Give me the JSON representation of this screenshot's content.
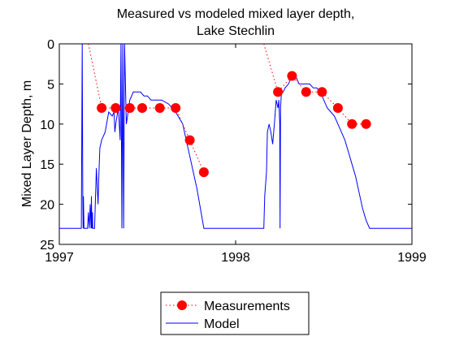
{
  "chart_data": {
    "type": "line",
    "title": [
      "Measured vs modeled mixed layer depth,",
      "Lake Stechlin"
    ],
    "xlabel": "",
    "ylabel": "Mixed Layer Depth, m",
    "xlim": [
      1997,
      1999
    ],
    "ylim": [
      0,
      25
    ],
    "y_reversed": true,
    "grid": false,
    "legend_placement": "bottom-center",
    "xticks": [
      1997,
      1998,
      1999
    ],
    "xtick_labels": [
      "1997",
      "1998",
      "1999"
    ],
    "yticks": [
      0,
      5,
      10,
      15,
      20,
      25
    ],
    "ytick_labels": [
      "0",
      "5",
      "10",
      "15",
      "20",
      "25"
    ],
    "series": [
      {
        "name": "Measurements",
        "style": "dotted-line-with-markers",
        "color": "#ff0000",
        "x": [
          1997.165,
          1997.24,
          1997.32,
          1997.4,
          1997.47,
          1997.57,
          1997.66,
          1997.74,
          1997.82,
          1998.16,
          1998.24,
          1998.32,
          1998.4,
          1998.49,
          1998.58,
          1998.66,
          1998.74
        ],
        "y": [
          0,
          8,
          8,
          8,
          8,
          8,
          8,
          12,
          16,
          0,
          6,
          4,
          6,
          6,
          8,
          10,
          10
        ],
        "marker": [
          false,
          true,
          true,
          true,
          true,
          true,
          true,
          true,
          true,
          false,
          true,
          true,
          true,
          true,
          true,
          true,
          true
        ]
      },
      {
        "name": "Model",
        "style": "solid-line",
        "color": "#0000ff",
        "x": [
          1997.0,
          1997.125,
          1997.13,
          1997.133,
          1997.135,
          1997.137,
          1997.14,
          1997.16,
          1997.165,
          1997.17,
          1997.175,
          1997.18,
          1997.182,
          1997.185,
          1997.188,
          1997.19,
          1997.2,
          1997.21,
          1997.22,
          1997.225,
          1997.23,
          1997.24,
          1997.26,
          1997.28,
          1997.3,
          1997.31,
          1997.315,
          1997.32,
          1997.335,
          1997.345,
          1997.35,
          1997.355,
          1997.36,
          1997.365,
          1997.37,
          1997.38,
          1997.4,
          1997.42,
          1997.44,
          1997.46,
          1997.48,
          1997.5,
          1997.52,
          1997.54,
          1997.58,
          1997.62,
          1997.66,
          1997.7,
          1997.72,
          1997.74,
          1997.76,
          1997.78,
          1997.8,
          1997.82,
          1997.84,
          1997.845,
          1998.16,
          1998.165,
          1998.175,
          1998.18,
          1998.19,
          1998.2,
          1998.21,
          1998.22,
          1998.23,
          1998.24,
          1998.245,
          1998.25,
          1998.252,
          1998.255,
          1998.26,
          1998.27,
          1998.28,
          1998.3,
          1998.32,
          1998.34,
          1998.36,
          1998.38,
          1998.4,
          1998.42,
          1998.44,
          1998.46,
          1998.48,
          1998.5,
          1998.52,
          1998.54,
          1998.56,
          1998.58,
          1998.6,
          1998.62,
          1998.64,
          1998.66,
          1998.68,
          1998.7,
          1998.72,
          1998.74,
          1998.76,
          1998.78,
          1998.8,
          1998.82,
          1998.84,
          1999.0
        ],
        "y": [
          23,
          23,
          0,
          19,
          23,
          19,
          23,
          23,
          21,
          23,
          20,
          23,
          19,
          23,
          21,
          23,
          23,
          15.5,
          20,
          16,
          13,
          12,
          11,
          8.5,
          9,
          8.5,
          11,
          10,
          8,
          12,
          0,
          23,
          0,
          23,
          0,
          10,
          7,
          6,
          6,
          6,
          6.5,
          6.5,
          7,
          7,
          7,
          7.5,
          8.5,
          10,
          12,
          14,
          16,
          18,
          20.5,
          23,
          23,
          23,
          23,
          19,
          16,
          11,
          10,
          11,
          12.5,
          10,
          7,
          8,
          7,
          10,
          23,
          8,
          6,
          6,
          5.5,
          5,
          4,
          4,
          5,
          5,
          5,
          5,
          5.5,
          5.5,
          6,
          7,
          8,
          8.5,
          9,
          10,
          11,
          12,
          13.5,
          15,
          16.5,
          18.5,
          20.5,
          22,
          23,
          23,
          23,
          23,
          23,
          23
        ]
      }
    ]
  }
}
